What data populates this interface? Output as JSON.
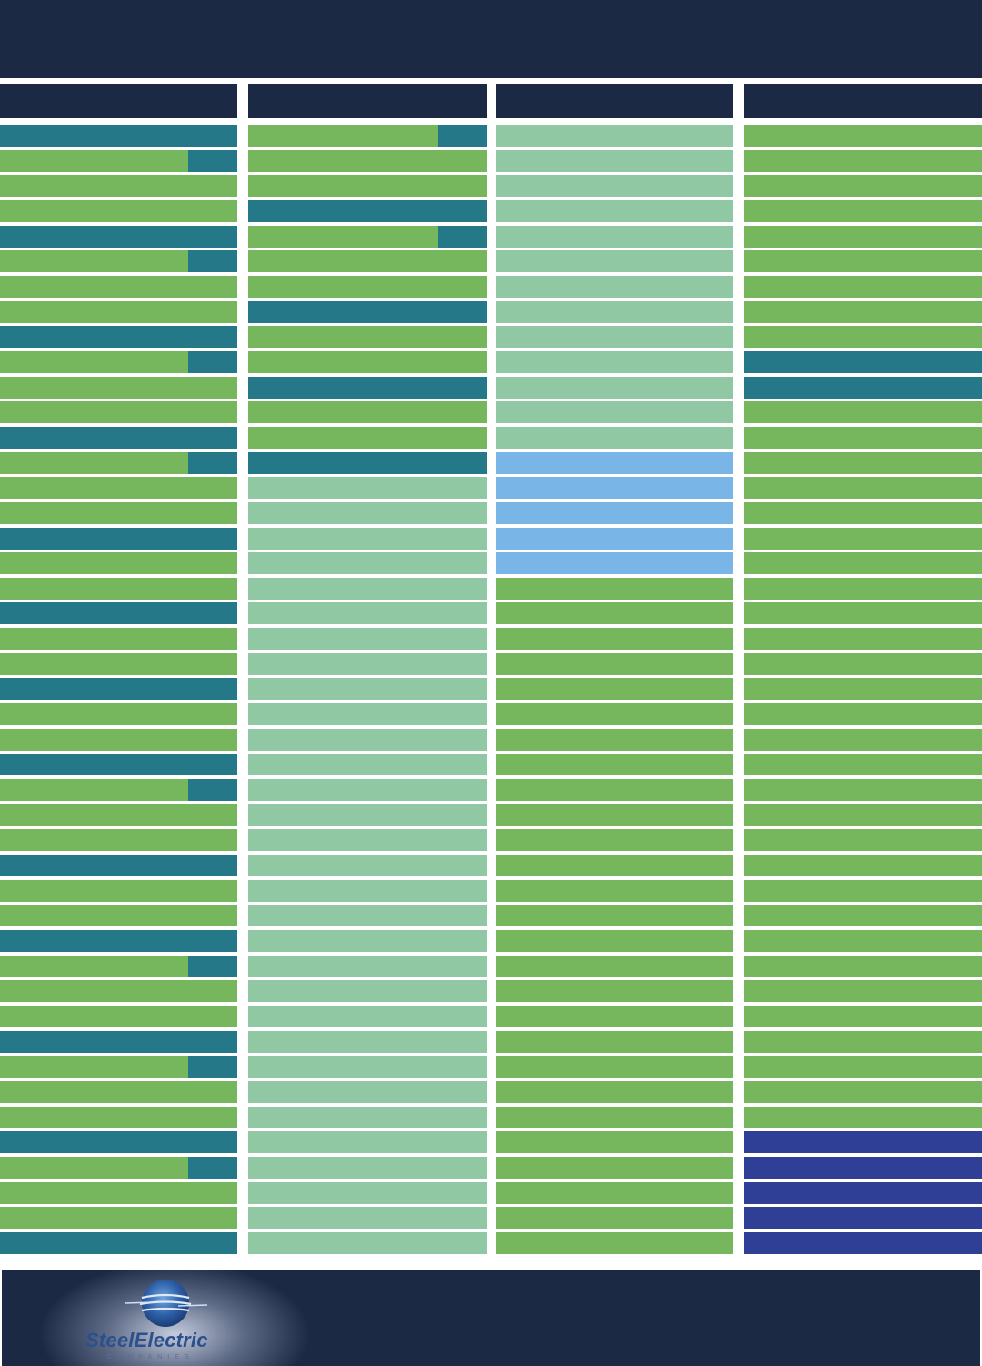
{
  "colors": {
    "navy": "#1b2945",
    "teal": "#247887",
    "green": "#76b65c",
    "light_green": "#90c8a3",
    "light_blue": "#79b6e7",
    "indigo": "#303f96"
  },
  "brand": {
    "logo_text": "SteelElectric",
    "logo_sub": "COMPANIES"
  },
  "columns": [
    {
      "rows": [
        [
          "teal"
        ],
        [
          "green",
          "teal"
        ],
        [
          "green"
        ],
        [
          "green"
        ],
        [
          "teal"
        ],
        [
          "green",
          "teal"
        ],
        [
          "green"
        ],
        [
          "green"
        ],
        [
          "teal"
        ],
        [
          "green",
          "teal"
        ],
        [
          "green"
        ],
        [
          "green"
        ],
        [
          "teal"
        ],
        [
          "green",
          "teal"
        ],
        [
          "green"
        ],
        [
          "green"
        ],
        [
          "teal"
        ],
        [
          "green"
        ],
        [
          "green"
        ],
        [
          "teal"
        ],
        [
          "green"
        ],
        [
          "green"
        ],
        [
          "teal"
        ],
        [
          "green"
        ],
        [
          "green"
        ],
        [
          "teal"
        ],
        [
          "green",
          "teal"
        ],
        [
          "green"
        ],
        [
          "green"
        ],
        [
          "teal"
        ],
        [
          "green"
        ],
        [
          "green"
        ],
        [
          "teal"
        ],
        [
          "green",
          "teal"
        ],
        [
          "green"
        ],
        [
          "green"
        ],
        [
          "teal"
        ],
        [
          "green",
          "teal"
        ],
        [
          "green"
        ],
        [
          "green"
        ],
        [
          "teal"
        ],
        [
          "green",
          "teal"
        ],
        [
          "green"
        ],
        [
          "green"
        ],
        [
          "teal"
        ]
      ]
    },
    {
      "rows": [
        [
          "green",
          "teal"
        ],
        [
          "green"
        ],
        [
          "green"
        ],
        [
          "teal"
        ],
        [
          "green",
          "teal"
        ],
        [
          "green"
        ],
        [
          "green"
        ],
        [
          "teal"
        ],
        [
          "green"
        ],
        [
          "green"
        ],
        [
          "teal"
        ],
        [
          "green"
        ],
        [
          "green"
        ],
        [
          "teal"
        ],
        [
          "light_green"
        ],
        [
          "light_green"
        ],
        [
          "light_green"
        ],
        [
          "light_green"
        ],
        [
          "light_green"
        ],
        [
          "light_green"
        ],
        [
          "light_green"
        ],
        [
          "light_green"
        ],
        [
          "light_green"
        ],
        [
          "light_green"
        ],
        [
          "light_green"
        ],
        [
          "light_green"
        ],
        [
          "light_green"
        ],
        [
          "light_green"
        ],
        [
          "light_green"
        ],
        [
          "light_green"
        ],
        [
          "light_green"
        ],
        [
          "light_green"
        ],
        [
          "light_green"
        ],
        [
          "light_green"
        ],
        [
          "light_green"
        ],
        [
          "light_green"
        ],
        [
          "light_green"
        ],
        [
          "light_green"
        ],
        [
          "light_green"
        ],
        [
          "light_green"
        ],
        [
          "light_green"
        ],
        [
          "light_green"
        ],
        [
          "light_green"
        ],
        [
          "light_green"
        ],
        [
          "light_green"
        ]
      ]
    },
    {
      "rows": [
        [
          "light_green"
        ],
        [
          "light_green"
        ],
        [
          "light_green"
        ],
        [
          "light_green"
        ],
        [
          "light_green"
        ],
        [
          "light_green"
        ],
        [
          "light_green"
        ],
        [
          "light_green"
        ],
        [
          "light_green"
        ],
        [
          "light_green"
        ],
        [
          "light_green"
        ],
        [
          "light_green"
        ],
        [
          "light_green"
        ],
        [
          "light_blue"
        ],
        [
          "light_blue"
        ],
        [
          "light_blue"
        ],
        [
          "light_blue"
        ],
        [
          "light_blue"
        ],
        [
          "green"
        ],
        [
          "green"
        ],
        [
          "green"
        ],
        [
          "green"
        ],
        [
          "green"
        ],
        [
          "green"
        ],
        [
          "green"
        ],
        [
          "green"
        ],
        [
          "green"
        ],
        [
          "green"
        ],
        [
          "green"
        ],
        [
          "green"
        ],
        [
          "green"
        ],
        [
          "green"
        ],
        [
          "green"
        ],
        [
          "green"
        ],
        [
          "green"
        ],
        [
          "green"
        ],
        [
          "green"
        ],
        [
          "green"
        ],
        [
          "green"
        ],
        [
          "green"
        ],
        [
          "green"
        ],
        [
          "green"
        ],
        [
          "green"
        ],
        [
          "green"
        ],
        [
          "green"
        ]
      ]
    },
    {
      "rows": [
        [
          "green"
        ],
        [
          "green"
        ],
        [
          "green"
        ],
        [
          "green"
        ],
        [
          "green"
        ],
        [
          "green"
        ],
        [
          "green"
        ],
        [
          "green"
        ],
        [
          "green"
        ],
        [
          "teal"
        ],
        [
          "teal"
        ],
        [
          "green"
        ],
        [
          "green"
        ],
        [
          "green"
        ],
        [
          "green"
        ],
        [
          "green"
        ],
        [
          "green"
        ],
        [
          "green"
        ],
        [
          "green"
        ],
        [
          "green"
        ],
        [
          "green"
        ],
        [
          "green"
        ],
        [
          "green"
        ],
        [
          "green"
        ],
        [
          "green"
        ],
        [
          "green"
        ],
        [
          "green"
        ],
        [
          "green"
        ],
        [
          "green"
        ],
        [
          "green"
        ],
        [
          "green"
        ],
        [
          "green"
        ],
        [
          "green"
        ],
        [
          "green"
        ],
        [
          "green"
        ],
        [
          "green"
        ],
        [
          "green"
        ],
        [
          "green"
        ],
        [
          "green"
        ],
        [
          "green"
        ],
        [
          "indigo"
        ],
        [
          "indigo"
        ],
        [
          "indigo"
        ],
        [
          "indigo"
        ],
        [
          "indigo"
        ]
      ]
    }
  ]
}
